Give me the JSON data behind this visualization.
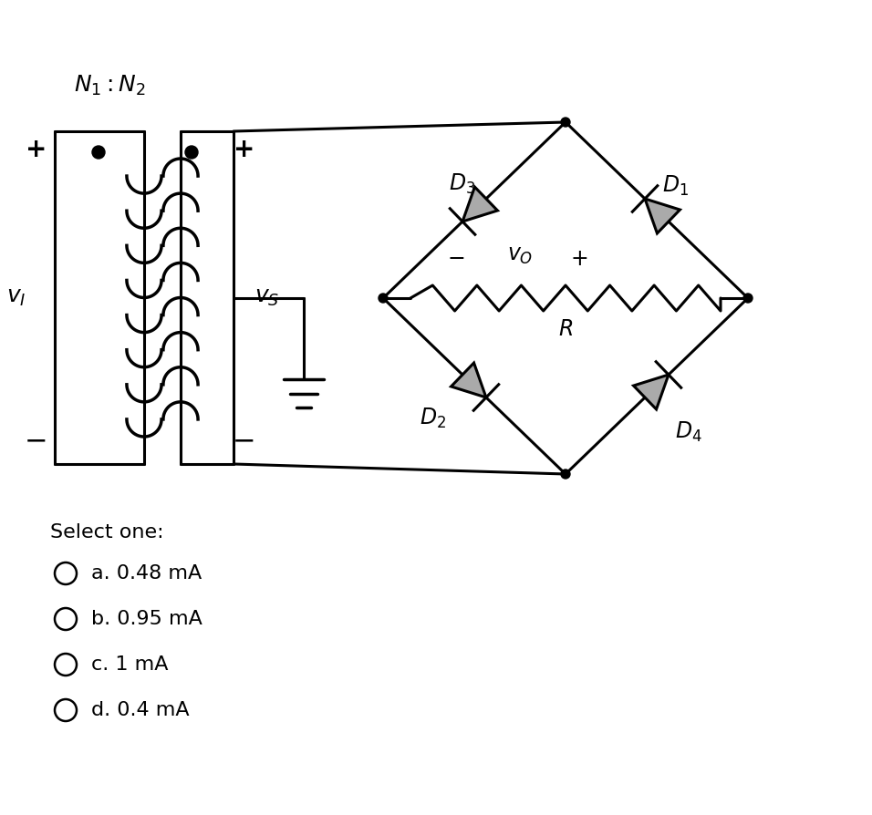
{
  "bg_color": "#ffffff",
  "line_color": "#000000",
  "diode_fill": "#aaaaaa",
  "options": [
    "a. 0.48 mA",
    "b. 0.95 mA",
    "c. 1 mA",
    "d. 0.4 mA"
  ],
  "select_text": "Select one:"
}
